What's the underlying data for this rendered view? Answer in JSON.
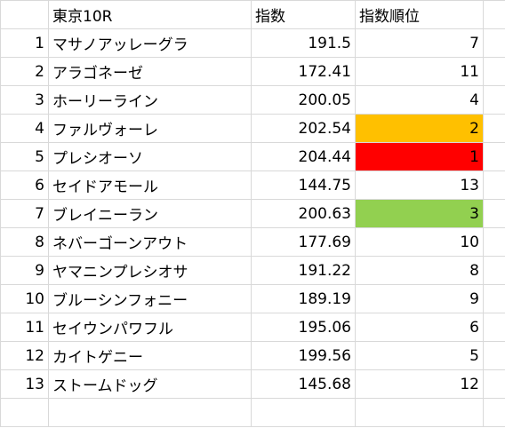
{
  "header": {
    "rownum": "",
    "race": "東京10R",
    "index": "指数",
    "rank": "指数順位",
    "extra": ""
  },
  "rows": [
    {
      "no": "1",
      "name": "マサノアッレーグラ",
      "index": "191.5",
      "rank": "7",
      "highlight": ""
    },
    {
      "no": "2",
      "name": "アラゴネーゼ",
      "index": "172.41",
      "rank": "11",
      "highlight": ""
    },
    {
      "no": "3",
      "name": "ホーリーライン",
      "index": "200.05",
      "rank": "4",
      "highlight": ""
    },
    {
      "no": "4",
      "name": "ファルヴォーレ",
      "index": "202.54",
      "rank": "2",
      "highlight": "#ffc000"
    },
    {
      "no": "5",
      "name": "プレシオーソ",
      "index": "204.44",
      "rank": "1",
      "highlight": "#ff0000"
    },
    {
      "no": "6",
      "name": "セイドアモール",
      "index": "144.75",
      "rank": "13",
      "highlight": ""
    },
    {
      "no": "7",
      "name": "ブレイニーラン",
      "index": "200.63",
      "rank": "3",
      "highlight": "#92d050"
    },
    {
      "no": "8",
      "name": "ネバーゴーンアウト",
      "index": "177.69",
      "rank": "10",
      "highlight": ""
    },
    {
      "no": "9",
      "name": "ヤマニンプレシオサ",
      "index": "191.22",
      "rank": "8",
      "highlight": ""
    },
    {
      "no": "10",
      "name": "ブルーシンフォニー",
      "index": "189.19",
      "rank": "9",
      "highlight": ""
    },
    {
      "no": "11",
      "name": "セイウンパワフル",
      "index": "195.06",
      "rank": "6",
      "highlight": ""
    },
    {
      "no": "12",
      "name": "カイトゲニー",
      "index": "199.56",
      "rank": "5",
      "highlight": ""
    },
    {
      "no": "13",
      "name": "ストームドッグ",
      "index": "145.68",
      "rank": "12",
      "highlight": ""
    }
  ],
  "colors": {
    "gridline": "#d9d9d9",
    "rank_1": "#ff0000",
    "rank_2": "#ffc000",
    "rank_3": "#92d050"
  }
}
